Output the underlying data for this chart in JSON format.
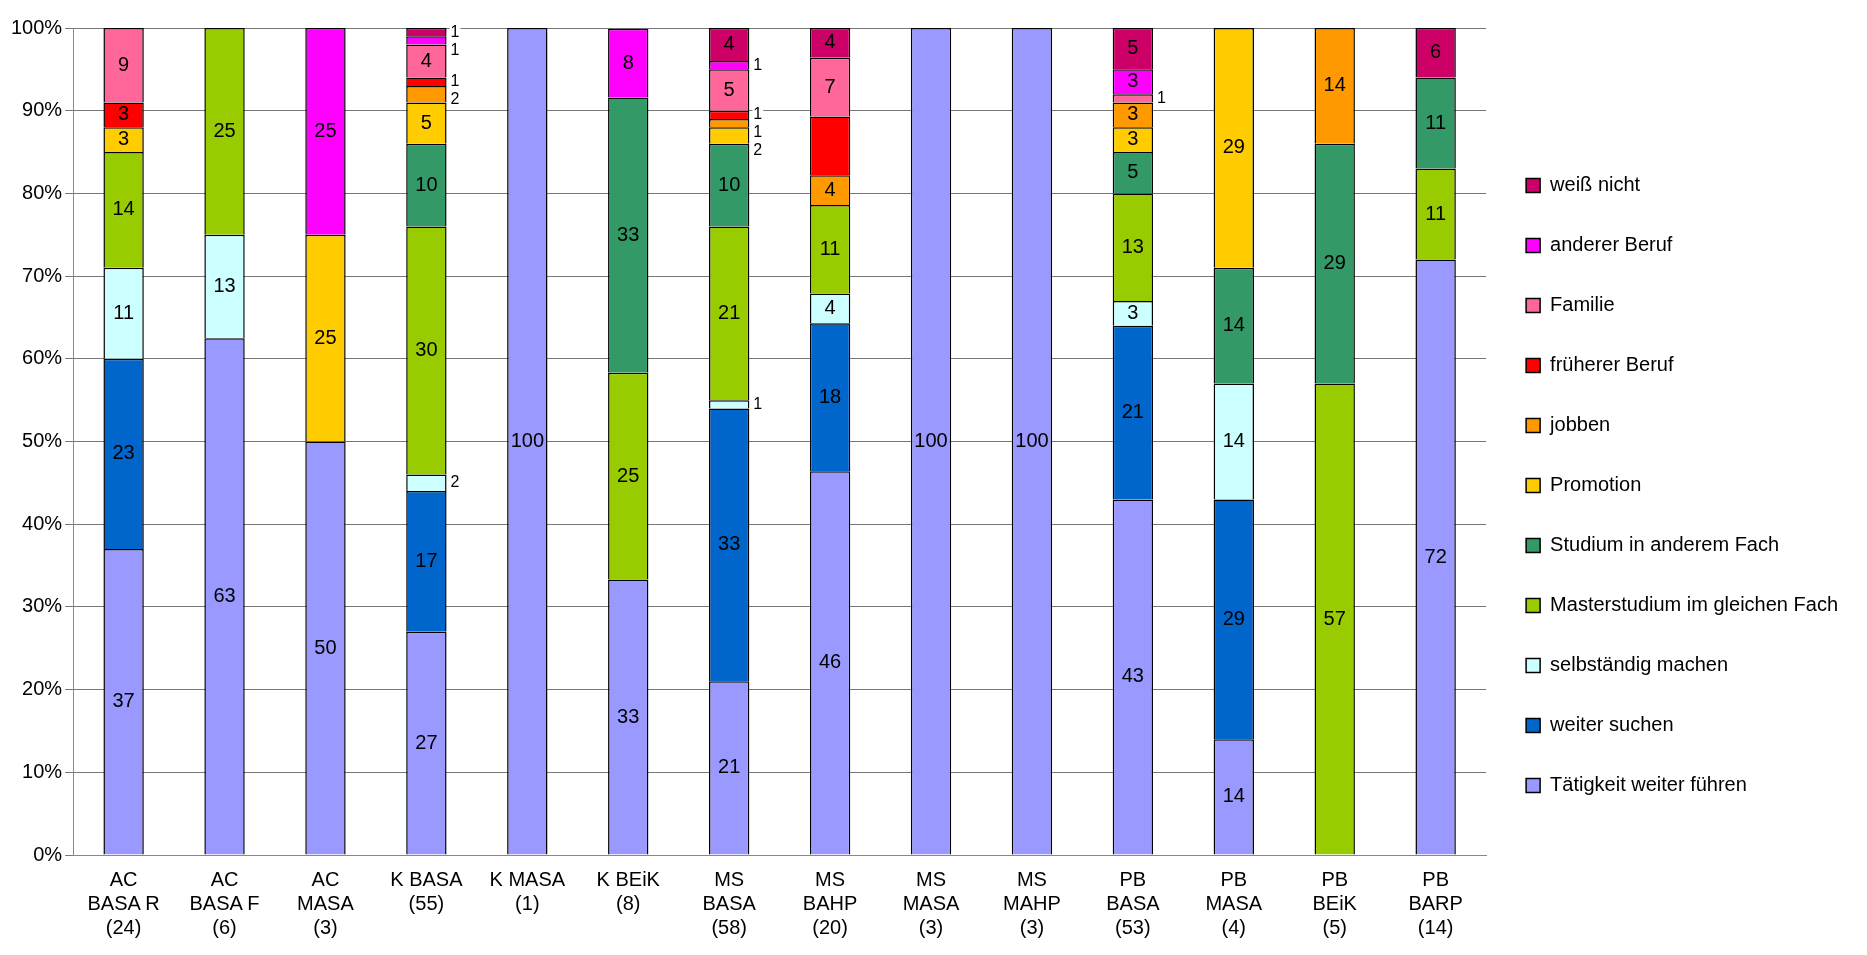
{
  "chart_data": {
    "type": "bar",
    "stacked": true,
    "categories": [
      "AC BASA R (24)",
      "AC BASA F (6)",
      "AC MASA (3)",
      "K BASA (55)",
      "K MASA (1)",
      "K BEiK (8)",
      "MS BASA (58)",
      "MS BAHP (20)",
      "MS MASA (3)",
      "MS MAHP (3)",
      "PB BASA (53)",
      "PB MASA (4)",
      "PB BEiK (5)",
      "PB BARP (14)"
    ],
    "ylim": [
      0,
      100
    ],
    "yticks": [
      {
        "value": 0,
        "label": "0%"
      },
      {
        "value": 10,
        "label": "10%"
      },
      {
        "value": 20,
        "label": "20%"
      },
      {
        "value": 30,
        "label": "30%"
      },
      {
        "value": 40,
        "label": "40%"
      },
      {
        "value": 50,
        "label": "50%"
      },
      {
        "value": 60,
        "label": "60%"
      },
      {
        "value": 70,
        "label": "70%"
      },
      {
        "value": 80,
        "label": "80%"
      },
      {
        "value": 90,
        "label": "90%"
      },
      {
        "value": 100,
        "label": "100%"
      }
    ],
    "grid": "y",
    "legend": "right",
    "series": [
      {
        "name": "Tätigkeit weiter führen",
        "color": "#9999ff",
        "values": [
          37,
          62.5,
          50,
          27,
          100,
          33.3,
          21,
          46.4,
          100,
          100,
          43,
          14,
          0,
          72
        ],
        "value_labels": [
          "37",
          "63",
          "50",
          "27",
          "100",
          "33",
          "21",
          "46",
          "100",
          "100",
          "43",
          "14",
          null,
          "72"
        ]
      },
      {
        "name": "weiter suchen",
        "color": "#0066cc",
        "values": [
          23,
          0,
          0,
          17,
          0,
          0,
          33,
          17.9,
          0,
          0,
          21,
          29,
          0,
          0
        ],
        "value_labels": [
          "23",
          null,
          null,
          "17",
          null,
          null,
          "33",
          "18",
          null,
          null,
          "21",
          "29",
          null,
          null
        ]
      },
      {
        "name": "selbständig machen",
        "color": "#ccffff",
        "values": [
          11,
          12.5,
          0,
          2,
          0,
          0,
          1,
          3.6,
          0,
          0,
          3,
          14,
          0,
          0
        ],
        "value_labels": [
          "11",
          "13",
          null,
          "2",
          null,
          null,
          "1",
          "4",
          null,
          null,
          "3",
          "14",
          null,
          null
        ]
      },
      {
        "name": "Masterstudium im gleichen Fach",
        "color": "#99cc00",
        "values": [
          14,
          25,
          0,
          30,
          0,
          25,
          21,
          10.7,
          0,
          0,
          13,
          0,
          57,
          11
        ],
        "value_labels": [
          "14",
          "25",
          null,
          "30",
          null,
          "25",
          "21",
          "11",
          null,
          null,
          "13",
          null,
          "57",
          "11"
        ]
      },
      {
        "name": "Studium in anderem Fach",
        "color": "#339966",
        "values": [
          0,
          0,
          0,
          10,
          0,
          33.3,
          10,
          0,
          0,
          0,
          5,
          14,
          29,
          11
        ],
        "value_labels": [
          null,
          null,
          null,
          "10",
          null,
          "33",
          "10",
          null,
          null,
          null,
          "5",
          "14",
          "29",
          "11"
        ]
      },
      {
        "name": "Promotion",
        "color": "#ffcc00",
        "values": [
          3,
          0,
          25,
          5,
          0,
          0,
          2,
          0,
          0,
          0,
          3,
          29,
          0,
          0
        ],
        "value_labels": [
          "3",
          null,
          "25",
          "5",
          null,
          null,
          "2",
          null,
          null,
          null,
          "3",
          "29",
          null,
          null
        ]
      },
      {
        "name": "jobben",
        "color": "#ff9900",
        "values": [
          0,
          0,
          0,
          2,
          0,
          0,
          1,
          3.6,
          0,
          0,
          3,
          0,
          14,
          0
        ],
        "value_labels": [
          null,
          null,
          null,
          "2",
          null,
          null,
          "1",
          "4",
          null,
          null,
          "3",
          null,
          "14",
          null
        ]
      },
      {
        "name": "früherer Beruf",
        "color": "#ff0000",
        "values": [
          3,
          0,
          0,
          1,
          0,
          0,
          1,
          7.1,
          0,
          0,
          0,
          0,
          0,
          0
        ],
        "value_labels": [
          "3",
          null,
          null,
          "1",
          null,
          null,
          "1",
          null,
          null,
          null,
          null,
          null,
          null,
          null
        ]
      },
      {
        "name": "Familie",
        "color": "#ff6699",
        "values": [
          9,
          0,
          0,
          4,
          0,
          0,
          5,
          7.1,
          0,
          0,
          1,
          0,
          0,
          0
        ],
        "value_labels": [
          "9",
          null,
          null,
          "4",
          null,
          null,
          "5",
          "7",
          null,
          null,
          "1",
          null,
          null,
          null
        ]
      },
      {
        "name": "anderer Beruf",
        "color": "#ff00ff",
        "values": [
          0,
          0,
          25,
          1,
          0,
          8.3,
          1,
          0,
          0,
          0,
          3,
          0,
          0,
          0
        ],
        "value_labels": [
          null,
          null,
          "25",
          "1",
          null,
          "8",
          "1",
          null,
          null,
          null,
          "3",
          null,
          null,
          null
        ]
      },
      {
        "name": "weiß nicht",
        "color": "#cc0066",
        "values": [
          0,
          0,
          0,
          1,
          0,
          0,
          4,
          3.6,
          0,
          0,
          5,
          0,
          0,
          6
        ],
        "value_labels": [
          null,
          null,
          null,
          "1",
          null,
          null,
          "4",
          "4",
          null,
          null,
          "5",
          null,
          null,
          "6"
        ]
      }
    ]
  }
}
